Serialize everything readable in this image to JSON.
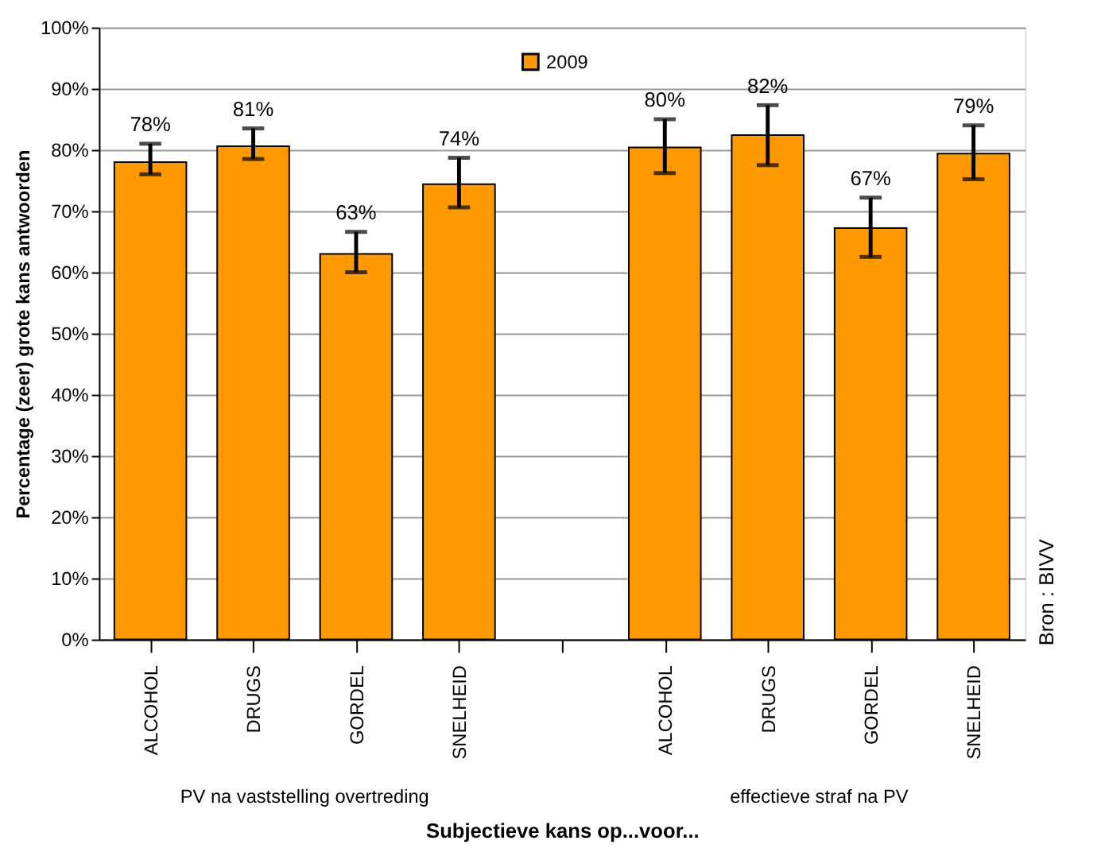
{
  "chart_data": {
    "type": "bar",
    "xlabel": "Subjectieve kans op...voor...",
    "ylabel": "Percentage (zeer) grote kans antwoorden",
    "categories": [
      "ALCOHOL",
      "DRUGS",
      "GORDEL",
      "SNELHEID",
      null,
      "ALCOHOL",
      "DRUGS",
      "GORDEL",
      "SNELHEID"
    ],
    "series": [
      {
        "name": "2009",
        "color": "#ff9900",
        "values": [
          78,
          80.6,
          63,
          74.4,
          null,
          80.4,
          82.4,
          67.2,
          79.4
        ],
        "errors": [
          [
            76,
            81
          ],
          [
            78.5,
            83.5
          ],
          [
            60,
            66.6
          ],
          [
            70.6,
            78.7
          ],
          null,
          [
            76.2,
            85
          ],
          [
            77.5,
            87.3
          ],
          [
            62.5,
            72.2
          ],
          [
            75.2,
            84
          ]
        ],
        "value_labels": [
          "78%",
          "81%",
          "63%",
          "74%",
          null,
          "80%",
          "82%",
          "67%",
          "79%"
        ]
      }
    ],
    "ylim": [
      0,
      100
    ],
    "yticks": [
      {
        "value": 0,
        "label": "0%"
      },
      {
        "value": 10,
        "label": "10%"
      },
      {
        "value": 20,
        "label": "20%"
      },
      {
        "value": 30,
        "label": "30%"
      },
      {
        "value": 40,
        "label": "40%"
      },
      {
        "value": 50,
        "label": "50%"
      },
      {
        "value": 60,
        "label": "60%"
      },
      {
        "value": 70,
        "label": "70%"
      },
      {
        "value": 80,
        "label": "80%"
      },
      {
        "value": 90,
        "label": "90%"
      },
      {
        "value": 100,
        "label": "100%"
      }
    ],
    "grid": "y",
    "legend": "top",
    "data_labels": false,
    "annotations": [
      "PV na vaststelling overtreding",
      "effectieve straf na PV",
      "Bron : BIVV"
    ]
  }
}
